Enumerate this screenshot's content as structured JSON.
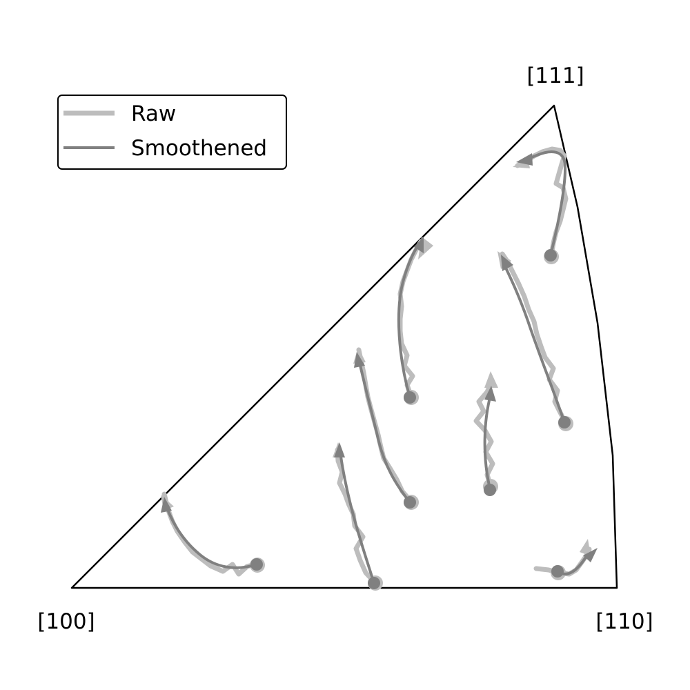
{
  "poles": {
    "p100": "[100]",
    "p110": "[110]",
    "p111": "[111]"
  },
  "legend": {
    "raw_label": "Raw",
    "smooth_label": "Smoothened"
  },
  "colors": {
    "raw": "#bdbdbd",
    "smoothened": "#808080",
    "outline": "#000000"
  }
}
